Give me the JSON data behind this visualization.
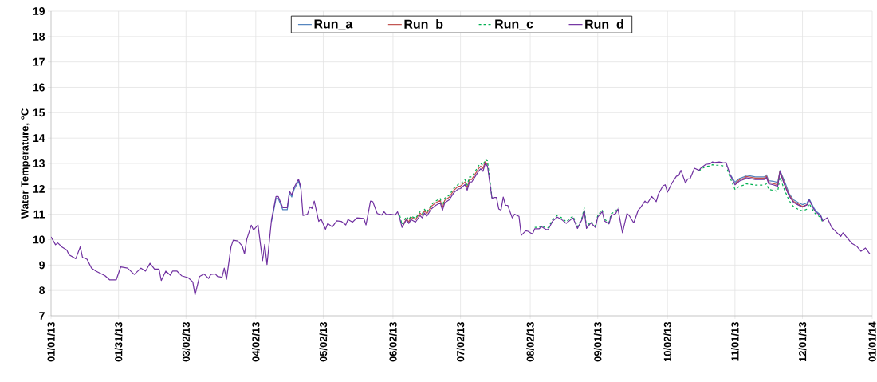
{
  "chart_data": {
    "type": "line",
    "ylabel": "Water Temperature, °C",
    "xlim": [
      "2013-01-01",
      "2014-01-01"
    ],
    "ylim": [
      7,
      19
    ],
    "yticks": [
      7,
      8,
      9,
      10,
      11,
      12,
      13,
      14,
      15,
      16,
      17,
      18,
      19
    ],
    "xticks": [
      {
        "value": "2013-01-01",
        "label": "01/01/13"
      },
      {
        "value": "2013-01-31",
        "label": "01/31/13"
      },
      {
        "value": "2013-03-02",
        "label": "03/02/13"
      },
      {
        "value": "2013-04-02",
        "label": "04/02/13"
      },
      {
        "value": "2013-05-02",
        "label": "05/02/13"
      },
      {
        "value": "2013-06-02",
        "label": "06/02/13"
      },
      {
        "value": "2013-07-02",
        "label": "07/02/13"
      },
      {
        "value": "2013-08-02",
        "label": "08/02/13"
      },
      {
        "value": "2013-09-01",
        "label": "09/01/13"
      },
      {
        "value": "2013-10-02",
        "label": "10/02/13"
      },
      {
        "value": "2013-11-01",
        "label": "11/01/13"
      },
      {
        "value": "2013-12-01",
        "label": "12/01/13"
      },
      {
        "value": "2014-01-01",
        "label": "01/01/14"
      }
    ],
    "grid": true,
    "legend": "top",
    "marker": "none",
    "x": [
      "2013-01-01",
      "2013-01-03",
      "2013-01-04",
      "2013-01-06",
      "2013-01-08",
      "2013-01-09",
      "2013-01-12",
      "2013-01-14",
      "2013-01-15",
      "2013-01-17",
      "2013-01-19",
      "2013-01-21",
      "2013-01-25",
      "2013-01-27",
      "2013-01-30",
      "2013-02-01",
      "2013-02-04",
      "2013-02-07",
      "2013-02-10",
      "2013-02-12",
      "2013-02-14",
      "2013-02-16",
      "2013-02-18",
      "2013-02-19",
      "2013-02-21",
      "2013-02-23",
      "2013-02-24",
      "2013-02-26",
      "2013-02-28",
      "2013-03-03",
      "2013-03-05",
      "2013-03-06",
      "2013-03-08",
      "2013-03-10",
      "2013-03-12",
      "2013-03-13",
      "2013-03-15",
      "2013-03-16",
      "2013-03-18",
      "2013-03-19",
      "2013-03-20",
      "2013-03-22",
      "2013-03-23",
      "2013-03-25",
      "2013-03-27",
      "2013-03-28",
      "2013-03-29",
      "2013-03-31",
      "2013-04-01",
      "2013-04-03",
      "2013-04-05",
      "2013-04-06",
      "2013-04-07",
      "2013-04-09",
      "2013-04-11",
      "2013-04-12",
      "2013-04-14",
      "2013-04-16",
      "2013-04-17",
      "2013-04-18",
      "2013-04-19",
      "2013-04-21",
      "2013-04-22",
      "2013-04-23",
      "2013-04-25",
      "2013-04-26",
      "2013-04-27",
      "2013-04-28",
      "2013-04-30",
      "2013-05-01",
      "2013-05-03",
      "2013-05-04",
      "2013-05-06",
      "2013-05-08",
      "2013-05-10",
      "2013-05-12",
      "2013-05-13",
      "2013-05-15",
      "2013-05-17",
      "2013-05-20",
      "2013-05-21",
      "2013-05-23",
      "2013-05-24",
      "2013-05-26",
      "2013-05-28",
      "2013-05-29",
      "2013-05-30",
      "2013-06-01",
      "2013-06-03",
      "2013-06-04",
      "2013-06-05",
      "2013-06-06",
      "2013-06-08",
      "2013-06-09",
      "2013-06-10",
      "2013-06-12",
      "2013-06-14",
      "2013-06-15",
      "2013-06-16",
      "2013-06-17",
      "2013-06-19",
      "2013-06-21",
      "2013-06-23",
      "2013-06-24",
      "2013-06-25",
      "2013-06-27",
      "2013-06-29",
      "2013-07-01",
      "2013-07-02",
      "2013-07-04",
      "2013-07-05",
      "2013-07-06",
      "2013-07-07",
      "2013-07-10",
      "2013-07-11",
      "2013-07-12",
      "2013-07-13",
      "2013-07-14",
      "2013-07-16",
      "2013-07-17",
      "2013-07-18",
      "2013-07-19",
      "2013-07-20",
      "2013-07-21",
      "2013-07-22",
      "2013-07-23",
      "2013-07-25",
      "2013-07-26",
      "2013-07-28",
      "2013-07-29",
      "2013-07-31",
      "2013-08-01",
      "2013-08-03",
      "2013-08-04",
      "2013-08-06",
      "2013-08-07",
      "2013-08-09",
      "2013-08-10",
      "2013-08-12",
      "2013-08-14",
      "2013-08-16",
      "2013-08-18",
      "2013-08-20",
      "2013-08-21",
      "2013-08-23",
      "2013-08-25",
      "2013-08-26",
      "2013-08-27",
      "2013-08-29",
      "2013-08-31",
      "2013-09-01",
      "2013-09-03",
      "2013-09-04",
      "2013-09-06",
      "2013-09-07",
      "2013-09-09",
      "2013-09-10",
      "2013-09-11",
      "2013-09-12",
      "2013-09-14",
      "2013-09-15",
      "2013-09-17",
      "2013-09-19",
      "2013-09-20",
      "2013-09-22",
      "2013-09-23",
      "2013-09-25",
      "2013-09-27",
      "2013-09-28",
      "2013-09-30",
      "2013-10-01",
      "2013-10-02",
      "2013-10-04",
      "2013-10-06",
      "2013-10-07",
      "2013-10-08",
      "2013-10-10",
      "2013-10-11",
      "2013-10-12",
      "2013-10-14",
      "2013-10-16",
      "2013-10-17",
      "2013-10-19",
      "2013-10-21",
      "2013-10-22",
      "2013-10-23",
      "2013-10-25",
      "2013-10-27",
      "2013-10-28",
      "2013-10-30",
      "2013-11-01",
      "2013-11-03",
      "2013-11-05",
      "2013-11-06",
      "2013-11-10",
      "2013-11-14",
      "2013-11-15",
      "2013-11-16",
      "2013-11-18",
      "2013-11-20",
      "2013-11-21",
      "2013-11-23",
      "2013-11-25",
      "2013-11-27",
      "2013-11-29",
      "2013-12-01",
      "2013-12-03",
      "2013-12-04",
      "2013-12-06",
      "2013-12-07",
      "2013-12-09",
      "2013-12-10",
      "2013-12-12",
      "2013-12-14",
      "2013-12-16",
      "2013-12-18",
      "2013-12-19",
      "2013-12-21",
      "2013-12-23",
      "2013-12-25",
      "2013-12-27",
      "2013-12-29",
      "2013-12-31"
    ],
    "series": [
      {
        "name": "Run_a",
        "color": "#4f81bd",
        "line_style": "solid",
        "x": [
          "2013-04-09",
          "2013-04-11",
          "2013-04-12",
          "2013-04-14",
          "2013-04-16",
          "2013-04-17",
          "2013-04-18",
          "2013-04-19",
          "2013-04-21",
          "2013-04-22",
          "2013-04-23",
          "2013-10-30",
          "2013-11-01",
          "2013-11-03",
          "2013-11-05",
          "2013-11-06",
          "2013-11-10",
          "2013-11-14",
          "2013-11-15",
          "2013-11-16",
          "2013-11-18",
          "2013-11-20",
          "2013-11-21",
          "2013-11-23",
          "2013-11-25",
          "2013-11-27",
          "2013-11-29",
          "2013-12-01",
          "2013-12-03",
          "2013-12-04",
          "2013-12-06",
          "2013-12-07",
          "2013-12-09",
          "2013-12-10"
        ],
        "values": [
          10.71,
          11.62,
          11.62,
          11.18,
          11.18,
          11.83,
          11.68,
          11.97,
          12.3,
          12.01,
          null,
          12.55,
          12.26,
          12.41,
          12.47,
          12.54,
          12.47,
          12.47,
          12.55,
          12.32,
          12.3,
          12.25,
          12.72,
          12.31,
          11.83,
          11.57,
          11.47,
          11.38,
          11.45,
          11.6,
          11.26,
          11.12,
          10.98,
          10.76
        ]
      },
      {
        "name": "Run_b",
        "color": "#c0504d",
        "line_style": "solid",
        "x": [
          "2013-06-06",
          "2013-06-08",
          "2013-06-09",
          "2013-06-10",
          "2013-06-12",
          "2013-06-14",
          "2013-06-15",
          "2013-06-16",
          "2013-06-17",
          "2013-06-19",
          "2013-06-21",
          "2013-06-23",
          "2013-06-24",
          "2013-06-25",
          "2013-06-27",
          "2013-06-29",
          "2013-07-01",
          "2013-07-02",
          "2013-07-04",
          "2013-07-05",
          "2013-07-06",
          "2013-07-07",
          "2013-07-10",
          "2013-07-11",
          "2013-07-12",
          "2013-07-13",
          "2013-07-14",
          "2013-07-16",
          "2013-11-01",
          "2013-11-03",
          "2013-11-05",
          "2013-11-06",
          "2013-11-10",
          "2013-11-14",
          "2013-11-15",
          "2013-11-16",
          "2013-11-18",
          "2013-11-20",
          "2013-11-21",
          "2013-11-23",
          "2013-11-25",
          "2013-11-27",
          "2013-11-29",
          "2013-12-01",
          "2013-12-03"
        ],
        "values": [
          10.5,
          10.83,
          10.7,
          10.89,
          10.79,
          11.05,
          10.96,
          11.15,
          11.02,
          11.31,
          11.45,
          11.55,
          11.26,
          11.55,
          11.67,
          11.94,
          12.1,
          12.11,
          12.27,
          12.05,
          12.37,
          12.37,
          12.79,
          12.89,
          12.8,
          13.07,
          12.95,
          null,
          12.21,
          12.36,
          12.42,
          12.49,
          12.42,
          12.42,
          12.5,
          12.25,
          12.21,
          12.16,
          12.7,
          12.2,
          11.77,
          11.51,
          11.41,
          11.31,
          11.38
        ]
      },
      {
        "name": "Run_c",
        "color": "#00b050",
        "line_style": "dashed",
        "x": [
          "2013-06-05",
          "2013-06-06",
          "2013-06-08",
          "2013-06-09",
          "2013-06-10",
          "2013-06-12",
          "2013-06-14",
          "2013-06-15",
          "2013-06-16",
          "2013-06-17",
          "2013-06-19",
          "2013-06-21",
          "2013-06-23",
          "2013-06-24",
          "2013-06-25",
          "2013-06-27",
          "2013-06-29",
          "2013-07-01",
          "2013-07-02",
          "2013-07-04",
          "2013-07-05",
          "2013-07-06",
          "2013-07-07",
          "2013-07-10",
          "2013-07-11",
          "2013-07-12",
          "2013-07-13",
          "2013-07-14",
          "2013-07-16",
          "2013-07-17",
          "2013-08-04",
          "2013-08-06",
          "2013-08-07",
          "2013-08-09",
          "2013-08-10",
          "2013-08-12",
          "2013-08-14",
          "2013-08-16",
          "2013-08-18",
          "2013-08-20",
          "2013-08-21",
          "2013-08-23",
          "2013-08-25",
          "2013-08-26",
          "2013-08-27",
          "2013-08-29",
          "2013-08-31",
          "2013-09-01",
          "2013-09-03",
          "2013-09-04",
          "2013-09-06",
          "2013-09-07",
          "2013-09-09",
          "2013-09-10",
          "2013-09-11",
          "2013-10-16",
          "2013-10-17",
          "2013-10-19",
          "2013-10-21",
          "2013-10-22",
          "2013-10-23",
          "2013-10-25",
          "2013-10-27",
          "2013-10-28",
          "2013-10-30",
          "2013-11-01",
          "2013-11-03",
          "2013-11-05",
          "2013-11-06",
          "2013-11-10",
          "2013-11-14",
          "2013-11-15",
          "2013-11-16",
          "2013-11-18",
          "2013-11-20",
          "2013-11-21",
          "2013-11-23",
          "2013-11-25",
          "2013-11-27",
          "2013-11-29",
          "2013-12-01",
          "2013-12-03",
          "2013-12-04",
          "2013-12-06",
          "2013-12-07",
          "2013-12-09",
          "2013-12-10"
        ],
        "values": [
          10.95,
          10.6,
          10.92,
          10.78,
          10.93,
          10.84,
          11.1,
          11.02,
          11.2,
          11.08,
          11.38,
          11.52,
          11.62,
          11.34,
          11.63,
          11.75,
          12.02,
          12.18,
          12.2,
          12.36,
          12.15,
          12.47,
          12.47,
          12.9,
          13.0,
          12.92,
          13.15,
          13.1,
          11.65,
          null,
          10.48,
          10.48,
          10.56,
          10.45,
          10.47,
          10.8,
          10.95,
          10.86,
          10.7,
          10.86,
          10.93,
          10.5,
          10.86,
          11.25,
          10.5,
          10.72,
          10.54,
          10.96,
          11.17,
          10.8,
          10.68,
          11.02,
          11.12,
          11.28,
          null,
          12.7,
          12.78,
          12.88,
          12.9,
          12.95,
          12.93,
          12.93,
          12.9,
          12.92,
          12.4,
          11.98,
          12.1,
          12.15,
          12.2,
          12.15,
          12.15,
          12.2,
          11.98,
          11.94,
          11.9,
          12.45,
          11.96,
          11.55,
          11.3,
          11.2,
          11.13,
          11.2,
          11.42,
          11.1,
          11.0,
          10.88,
          10.68
        ]
      },
      {
        "name": "Run_d",
        "color": "#7030a0",
        "line_style": "solid",
        "values": [
          10.11,
          9.8,
          9.87,
          9.7,
          9.59,
          9.4,
          9.25,
          9.72,
          9.3,
          9.23,
          8.88,
          8.76,
          8.58,
          8.42,
          8.42,
          8.93,
          8.88,
          8.63,
          8.88,
          8.76,
          9.07,
          8.84,
          8.84,
          8.39,
          8.76,
          8.6,
          8.76,
          8.76,
          8.58,
          8.5,
          8.34,
          7.82,
          8.55,
          8.65,
          8.47,
          8.63,
          8.65,
          8.55,
          8.52,
          8.88,
          8.44,
          9.72,
          9.98,
          9.95,
          9.75,
          9.44,
          10.01,
          10.57,
          10.38,
          10.58,
          9.17,
          9.82,
          9.02,
          10.79,
          11.7,
          11.7,
          11.26,
          11.26,
          11.91,
          11.76,
          12.05,
          12.38,
          12.09,
          10.95,
          11.0,
          11.29,
          11.23,
          11.52,
          10.72,
          10.82,
          10.41,
          10.64,
          10.5,
          10.74,
          10.72,
          10.58,
          10.79,
          10.69,
          10.86,
          10.84,
          10.58,
          11.52,
          11.5,
          11.03,
          10.97,
          11.1,
          10.99,
          11.0,
          10.97,
          11.1,
          10.84,
          10.48,
          10.79,
          10.64,
          10.79,
          10.69,
          10.95,
          10.86,
          11.05,
          10.92,
          11.21,
          11.35,
          11.45,
          11.16,
          11.45,
          11.57,
          11.84,
          12.0,
          12.01,
          12.17,
          11.95,
          12.27,
          12.27,
          12.69,
          12.79,
          12.69,
          13.0,
          12.89,
          11.63,
          11.66,
          11.66,
          11.21,
          11.16,
          11.68,
          11.35,
          11.35,
          10.86,
          11.0,
          10.92,
          10.17,
          10.35,
          10.33,
          10.22,
          10.43,
          10.43,
          10.51,
          10.4,
          10.4,
          10.74,
          10.89,
          10.79,
          10.64,
          10.79,
          10.86,
          10.44,
          10.79,
          11.16,
          10.44,
          10.66,
          10.48,
          10.89,
          11.1,
          10.74,
          10.62,
          10.95,
          11.03,
          11.21,
          10.74,
          10.27,
          11.03,
          10.95,
          10.66,
          11.16,
          11.26,
          11.52,
          11.42,
          11.7,
          11.5,
          11.8,
          12.12,
          12.16,
          11.87,
          12.23,
          12.5,
          12.52,
          12.73,
          12.23,
          12.39,
          12.39,
          12.81,
          12.73,
          12.83,
          12.96,
          12.99,
          13.06,
          13.04,
          13.06,
          13.02,
          13.04,
          12.52,
          12.16,
          12.31,
          12.37,
          12.44,
          12.37,
          12.37,
          12.45,
          12.2,
          12.16,
          12.1,
          12.67,
          12.16,
          11.73,
          11.47,
          11.37,
          11.28,
          11.37,
          11.56,
          11.21,
          11.08,
          10.95,
          10.74,
          10.86,
          10.48,
          10.3,
          10.13,
          10.27,
          10.06,
          9.85,
          9.75,
          9.54,
          9.67,
          9.43
        ]
      }
    ]
  }
}
